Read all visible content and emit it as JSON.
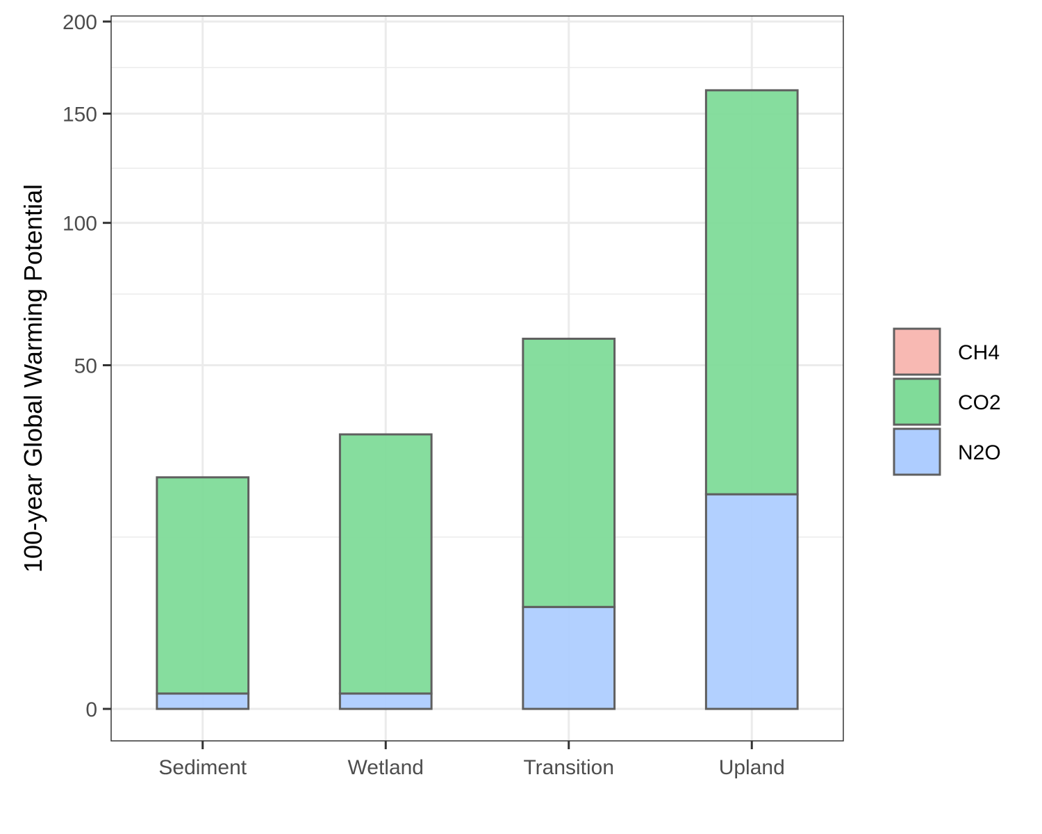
{
  "chart_data": {
    "type": "bar",
    "stacked": true,
    "y_scale": "sqrt",
    "title": "",
    "xlabel": "",
    "ylabel": "100-year Global Warming Potential",
    "ylim": [
      0,
      200
    ],
    "y_ticks": [
      0,
      50,
      100,
      150,
      200
    ],
    "y_tick_labels": [
      "0",
      "50",
      "100",
      "150",
      "200"
    ],
    "grid": true,
    "legend_position": "right",
    "categories": [
      "Sediment",
      "Wetland",
      "Transition",
      "Upland"
    ],
    "series": [
      {
        "name": "CH4",
        "color": "#f8b9b3",
        "values": [
          0,
          0,
          0,
          0
        ]
      },
      {
        "name": "N2O",
        "color": "#aecdff",
        "values": [
          0.1,
          0.1,
          4.4,
          19.5
        ]
      },
      {
        "name": "CO2",
        "color": "#80db99",
        "values": [
          22.6,
          31.8,
          53.6,
          142.5
        ]
      }
    ],
    "legend_order": [
      "CH4",
      "CO2",
      "N2O"
    ]
  }
}
